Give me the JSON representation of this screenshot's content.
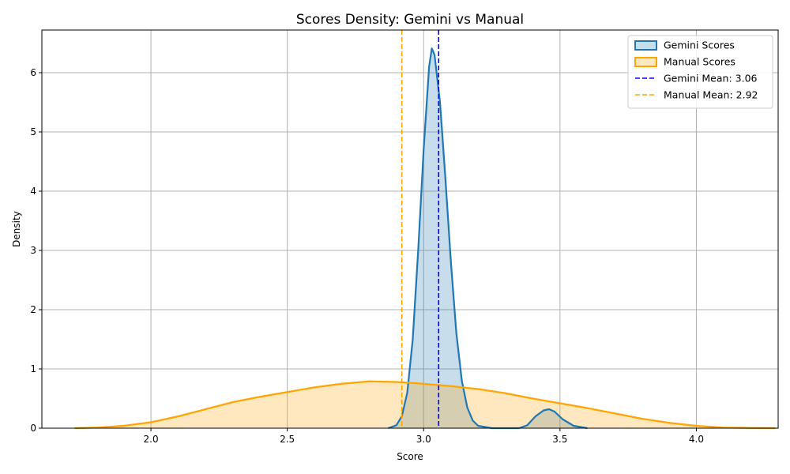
{
  "chart_data": {
    "type": "area",
    "title": "Scores Density: Gemini vs Manual",
    "xlabel": "Score",
    "ylabel": "Density",
    "xlim": [
      1.6,
      4.3
    ],
    "ylim": [
      0,
      6.72
    ],
    "xticks": [
      2.0,
      2.5,
      3.0,
      3.5,
      4.0
    ],
    "xtick_labels": [
      "2.0",
      "2.5",
      "3.0",
      "3.5",
      "4.0"
    ],
    "yticks": [
      0,
      1,
      2,
      3,
      4,
      5,
      6
    ],
    "ytick_labels": [
      "0",
      "1",
      "2",
      "3",
      "4",
      "5",
      "6"
    ],
    "grid": true,
    "legend_position": "top-right",
    "series": [
      {
        "name": "Gemini Scores",
        "kind": "density",
        "line_color": "#1f77b4",
        "fill_color": "#1f77b4",
        "points": [
          [
            2.87,
            0.0
          ],
          [
            2.9,
            0.05
          ],
          [
            2.92,
            0.2
          ],
          [
            2.94,
            0.6
          ],
          [
            2.96,
            1.5
          ],
          [
            2.98,
            3.0
          ],
          [
            3.0,
            4.7
          ],
          [
            3.02,
            6.1
          ],
          [
            3.03,
            6.41
          ],
          [
            3.04,
            6.3
          ],
          [
            3.06,
            5.5
          ],
          [
            3.08,
            4.2
          ],
          [
            3.1,
            2.8
          ],
          [
            3.12,
            1.6
          ],
          [
            3.14,
            0.8
          ],
          [
            3.16,
            0.35
          ],
          [
            3.18,
            0.13
          ],
          [
            3.2,
            0.04
          ],
          [
            3.25,
            0.0
          ],
          [
            3.35,
            0.0
          ],
          [
            3.38,
            0.05
          ],
          [
            3.41,
            0.2
          ],
          [
            3.44,
            0.3
          ],
          [
            3.46,
            0.32
          ],
          [
            3.48,
            0.28
          ],
          [
            3.51,
            0.15
          ],
          [
            3.55,
            0.04
          ],
          [
            3.6,
            0.0
          ]
        ]
      },
      {
        "name": "Manual Scores",
        "kind": "density",
        "line_color": "#ffa500",
        "fill_color": "#ffa500",
        "points": [
          [
            1.72,
            0.0
          ],
          [
            1.8,
            0.01
          ],
          [
            1.9,
            0.04
          ],
          [
            2.0,
            0.1
          ],
          [
            2.1,
            0.2
          ],
          [
            2.2,
            0.32
          ],
          [
            2.3,
            0.44
          ],
          [
            2.4,
            0.53
          ],
          [
            2.5,
            0.61
          ],
          [
            2.6,
            0.69
          ],
          [
            2.7,
            0.75
          ],
          [
            2.8,
            0.79
          ],
          [
            2.9,
            0.78
          ],
          [
            3.0,
            0.75
          ],
          [
            3.1,
            0.71
          ],
          [
            3.2,
            0.66
          ],
          [
            3.3,
            0.59
          ],
          [
            3.4,
            0.5
          ],
          [
            3.5,
            0.42
          ],
          [
            3.6,
            0.34
          ],
          [
            3.7,
            0.25
          ],
          [
            3.8,
            0.16
          ],
          [
            3.9,
            0.09
          ],
          [
            4.0,
            0.04
          ],
          [
            4.1,
            0.01
          ],
          [
            4.2,
            0.003
          ],
          [
            4.29,
            0.0
          ]
        ]
      }
    ],
    "reference_lines": [
      {
        "name": "Gemini Mean: 3.06",
        "x": 3.055,
        "color": "#0000ff",
        "style": "dashed"
      },
      {
        "name": "Manual Mean: 2.92",
        "x": 2.92,
        "color": "#ffa500",
        "style": "dashed"
      }
    ]
  }
}
